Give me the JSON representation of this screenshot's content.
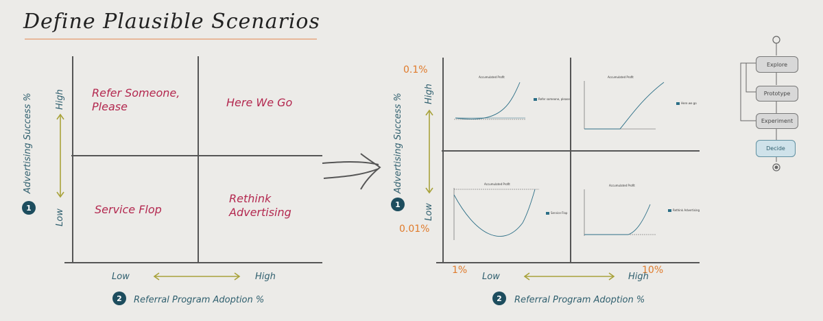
{
  "title": "Define Plausible Scenarios",
  "left": {
    "quadrants": {
      "top_left": "Refer Someone, Please",
      "top_right": "Here We Go",
      "bottom_left": "Service Flop",
      "bottom_right": "Rethink Advertising"
    },
    "y_axis": {
      "title": "Advertising Success %",
      "high": "High",
      "low": "Low",
      "badge": "1"
    },
    "x_axis": {
      "title": "Referral Program Adoption %",
      "low": "Low",
      "high": "High",
      "badge": "2"
    }
  },
  "right": {
    "y_axis": {
      "title": "Advertising Success %",
      "high": "High",
      "low": "Low",
      "badge": "1",
      "top_value": "0.1%",
      "bottom_value": "0.01%"
    },
    "x_axis": {
      "title": "Referral Program Adoption %",
      "low": "Low",
      "high": "High",
      "badge": "2",
      "left_value": "1%",
      "right_value": "10%"
    },
    "mini_charts": {
      "top_left": {
        "title": "Accumulated Profit",
        "legend": "Refer someone, please"
      },
      "top_right": {
        "title": "Accumulated Profit",
        "legend": "Here we go"
      },
      "bottom_left": {
        "title": "Accumulated Profit",
        "legend": "Service Flop"
      },
      "bottom_right": {
        "title": "Accumulated Profit",
        "legend": "Rethink Advertising"
      }
    }
  },
  "flow": {
    "steps": [
      "Explore",
      "Prototype",
      "Experiment",
      "Decide"
    ]
  },
  "colors": {
    "quadrant_text": "#b3284f",
    "axis_text": "#2f5f6e",
    "arrow": "#a8a23a",
    "value_text": "#e07a2a",
    "curve": "#2b6e86"
  }
}
